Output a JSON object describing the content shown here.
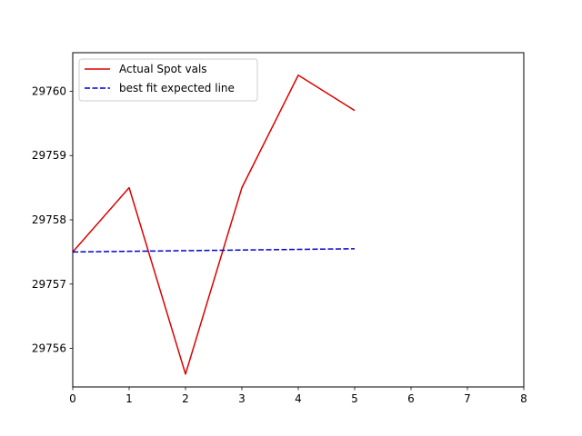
{
  "chart_data": {
    "type": "line",
    "xlim": [
      0,
      8
    ],
    "ylim": [
      29755.4,
      29760.6
    ],
    "x_ticks": [
      0,
      1,
      2,
      3,
      4,
      5,
      6,
      7,
      8
    ],
    "y_ticks": [
      29756,
      29757,
      29758,
      29759,
      29760
    ],
    "grid": false,
    "legend_position": "top-left",
    "series": [
      {
        "name": "Actual Spot vals",
        "color": "#dd0000",
        "style": "solid",
        "x": [
          0,
          1,
          2,
          3,
          4,
          5
        ],
        "values": [
          29757.5,
          29758.5,
          29755.6,
          29758.5,
          29760.25,
          29759.7
        ]
      },
      {
        "name": "best fit expected line",
        "color": "#0000cc",
        "style": "dashed",
        "x": [
          0,
          1,
          2,
          3,
          4,
          5
        ],
        "values": [
          29757.5,
          29757.51,
          29757.52,
          29757.53,
          29757.54,
          29757.55
        ]
      }
    ]
  }
}
